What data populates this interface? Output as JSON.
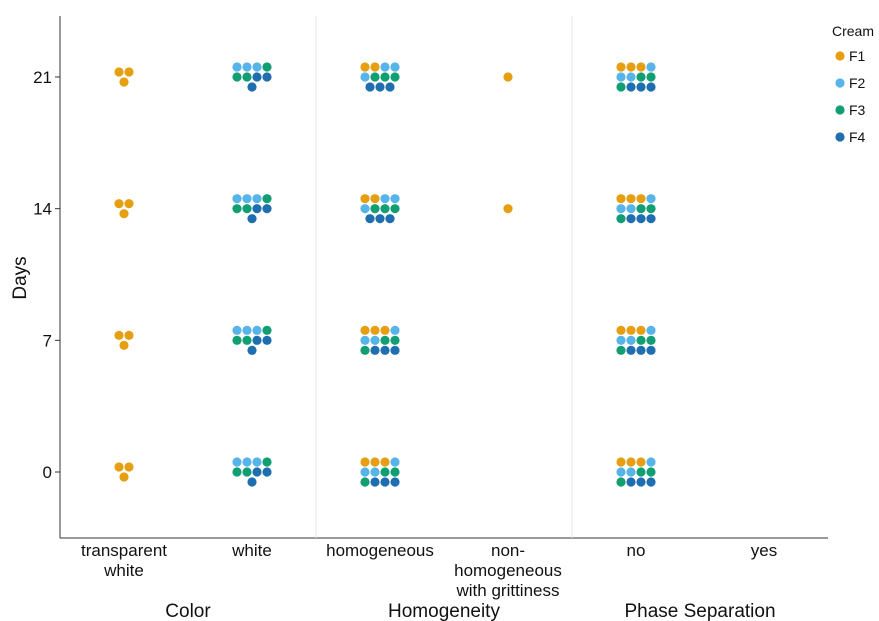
{
  "chart_data": {
    "type": "scatter",
    "subtype": "dot-plot",
    "ylabel": "Days",
    "y_ticks": [
      0,
      7,
      14,
      21
    ],
    "ylim": [
      -3.5,
      24
    ],
    "grid": false,
    "legend": {
      "title": "Cream",
      "placement": "top-right",
      "items": [
        {
          "name": "F1",
          "color": "#E69F12"
        },
        {
          "name": "F2",
          "color": "#56B4E9"
        },
        {
          "name": "F3",
          "color": "#119E73"
        },
        {
          "name": "F4",
          "color": "#1F6FB0"
        }
      ]
    },
    "groups": [
      {
        "label": "Color",
        "categories": [
          {
            "label": "transparent\nwhite",
            "counts": {
              "0": [
                3,
                0,
                0,
                0
              ],
              "7": [
                3,
                0,
                0,
                0
              ],
              "14": [
                3,
                0,
                0,
                0
              ],
              "21": [
                3,
                0,
                0,
                0
              ]
            }
          },
          {
            "label": "white",
            "counts": {
              "0": [
                0,
                3,
                3,
                3
              ],
              "7": [
                0,
                3,
                3,
                3
              ],
              "14": [
                0,
                3,
                3,
                3
              ],
              "21": [
                0,
                3,
                3,
                3
              ]
            }
          }
        ]
      },
      {
        "label": "Homogeneity",
        "categories": [
          {
            "label": "homogeneous",
            "counts": {
              "0": [
                3,
                3,
                3,
                3
              ],
              "7": [
                3,
                3,
                3,
                3
              ],
              "14": [
                2,
                3,
                3,
                3
              ],
              "21": [
                2,
                3,
                3,
                3
              ]
            }
          },
          {
            "label": "non-\nhomogeneous\nwith grittiness",
            "counts": {
              "0": [
                0,
                0,
                0,
                0
              ],
              "7": [
                0,
                0,
                0,
                0
              ],
              "14": [
                1,
                0,
                0,
                0
              ],
              "21": [
                1,
                0,
                0,
                0
              ]
            }
          }
        ]
      },
      {
        "label": "Phase Separation",
        "categories": [
          {
            "label": "no",
            "counts": {
              "0": [
                3,
                3,
                3,
                3
              ],
              "7": [
                3,
                3,
                3,
                3
              ],
              "14": [
                3,
                3,
                3,
                3
              ],
              "21": [
                3,
                3,
                3,
                3
              ]
            }
          },
          {
            "label": "yes",
            "counts": {
              "0": [
                0,
                0,
                0,
                0
              ],
              "7": [
                0,
                0,
                0,
                0
              ],
              "14": [
                0,
                0,
                0,
                0
              ],
              "21": [
                0,
                0,
                0,
                0
              ]
            }
          }
        ]
      }
    ]
  }
}
